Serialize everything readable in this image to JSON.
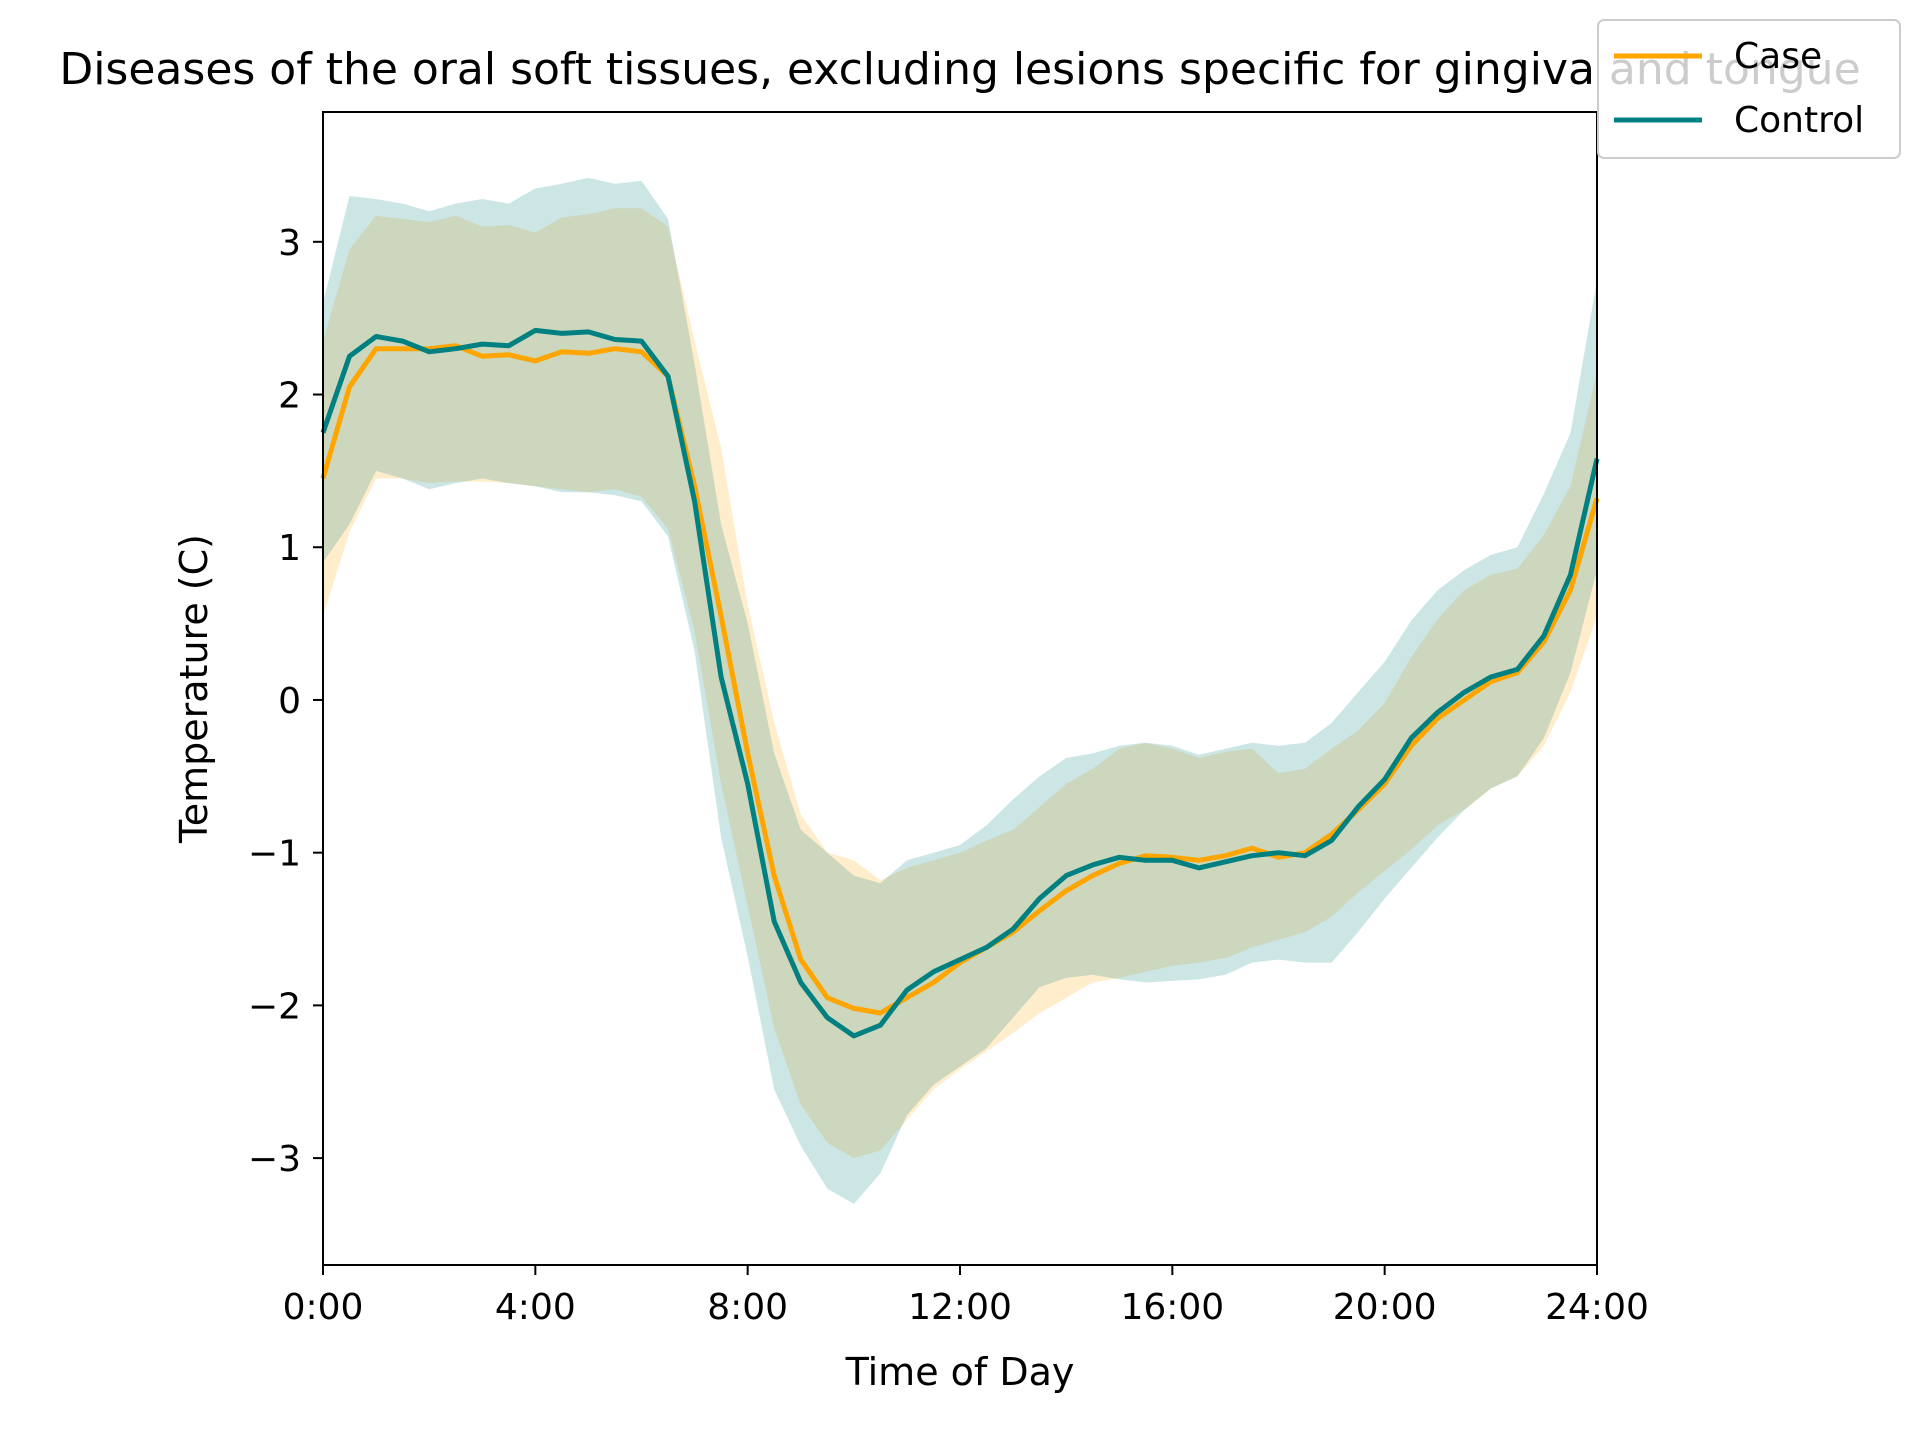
{
  "chart_data": {
    "type": "line",
    "title": "Diseases of the oral soft tissues, excluding lesions specific for gingiva and tongue",
    "xlabel": "Time of Day",
    "ylabel": "Temperature (C)",
    "xlim": [
      0,
      24
    ],
    "ylim": [
      -3.7,
      3.85
    ],
    "x_ticks": [
      0,
      4,
      8,
      12,
      16,
      20,
      24
    ],
    "x_tick_labels": [
      "0:00",
      "4:00",
      "8:00",
      "12:00",
      "16:00",
      "20:00",
      "24:00"
    ],
    "y_ticks": [
      -3,
      -2,
      -1,
      0,
      1,
      2,
      3
    ],
    "y_tick_labels": [
      "−3",
      "−2",
      "−1",
      "0",
      "1",
      "2",
      "3"
    ],
    "grid": false,
    "legend_position": "top-right",
    "series": [
      {
        "name": "Case",
        "color": "#FFA500",
        "x": [
          0,
          0.5,
          1,
          1.5,
          2,
          2.5,
          3,
          3.5,
          4,
          4.5,
          5,
          5.5,
          6,
          6.5,
          7,
          7.5,
          8,
          8.5,
          9,
          9.5,
          10,
          10.5,
          11,
          11.5,
          12,
          12.5,
          13,
          13.5,
          14,
          14.5,
          15,
          15.5,
          16,
          16.5,
          17,
          17.5,
          18,
          18.5,
          19,
          19.5,
          20,
          20.5,
          21,
          21.5,
          22,
          22.5,
          23,
          23.5,
          24
        ],
        "y": [
          1.45,
          2.05,
          2.3,
          2.3,
          2.3,
          2.32,
          2.25,
          2.26,
          2.22,
          2.28,
          2.27,
          2.3,
          2.28,
          2.12,
          1.4,
          0.55,
          -0.35,
          -1.15,
          -1.7,
          -1.95,
          -2.02,
          -2.05,
          -1.95,
          -1.85,
          -1.72,
          -1.62,
          -1.52,
          -1.38,
          -1.25,
          -1.15,
          -1.07,
          -1.02,
          -1.03,
          -1.05,
          -1.02,
          -0.97,
          -1.03,
          -1.0,
          -0.88,
          -0.72,
          -0.55,
          -0.3,
          -0.12,
          0.0,
          0.12,
          0.18,
          0.38,
          0.72,
          1.32
        ],
        "lower": [
          0.55,
          1.1,
          1.45,
          1.45,
          1.42,
          1.43,
          1.43,
          1.42,
          1.4,
          1.38,
          1.36,
          1.38,
          1.33,
          1.12,
          0.45,
          -0.55,
          -1.35,
          -2.15,
          -2.65,
          -2.9,
          -3.0,
          -2.95,
          -2.75,
          -2.55,
          -2.42,
          -2.3,
          -2.18,
          -2.05,
          -1.95,
          -1.85,
          -1.82,
          -1.78,
          -1.74,
          -1.72,
          -1.69,
          -1.62,
          -1.57,
          -1.52,
          -1.42,
          -1.26,
          -1.12,
          -0.98,
          -0.82,
          -0.72,
          -0.58,
          -0.5,
          -0.3,
          0.05,
          0.55
        ],
        "upper": [
          2.35,
          2.95,
          3.17,
          3.15,
          3.13,
          3.17,
          3.1,
          3.11,
          3.06,
          3.16,
          3.18,
          3.22,
          3.22,
          3.1,
          2.35,
          1.65,
          0.62,
          -0.15,
          -0.75,
          -1.0,
          -1.05,
          -1.18,
          -1.1,
          -1.05,
          -1.0,
          -0.92,
          -0.85,
          -0.7,
          -0.55,
          -0.45,
          -0.32,
          -0.28,
          -0.32,
          -0.38,
          -0.34,
          -0.32,
          -0.48,
          -0.45,
          -0.32,
          -0.2,
          -0.02,
          0.28,
          0.53,
          0.72,
          0.82,
          0.86,
          1.08,
          1.4,
          2.15
        ]
      },
      {
        "name": "Control",
        "color": "#008080",
        "x": [
          0,
          0.5,
          1,
          1.5,
          2,
          2.5,
          3,
          3.5,
          4,
          4.5,
          5,
          5.5,
          6,
          6.5,
          7,
          7.5,
          8,
          8.5,
          9,
          9.5,
          10,
          10.5,
          11,
          11.5,
          12,
          12.5,
          13,
          13.5,
          14,
          14.5,
          15,
          15.5,
          16,
          16.5,
          17,
          17.5,
          18,
          18.5,
          19,
          19.5,
          20,
          20.5,
          21,
          21.5,
          22,
          22.5,
          23,
          23.5,
          24
        ],
        "y": [
          1.75,
          2.25,
          2.38,
          2.35,
          2.28,
          2.3,
          2.33,
          2.32,
          2.42,
          2.4,
          2.41,
          2.36,
          2.35,
          2.12,
          1.3,
          0.15,
          -0.55,
          -1.45,
          -1.85,
          -2.08,
          -2.2,
          -2.13,
          -1.9,
          -1.78,
          -1.7,
          -1.62,
          -1.5,
          -1.3,
          -1.15,
          -1.08,
          -1.03,
          -1.05,
          -1.05,
          -1.1,
          -1.06,
          -1.02,
          -1.0,
          -1.02,
          -0.92,
          -0.7,
          -0.52,
          -0.25,
          -0.08,
          0.05,
          0.15,
          0.2,
          0.42,
          0.82,
          1.58
        ],
        "lower": [
          0.9,
          1.15,
          1.5,
          1.45,
          1.38,
          1.42,
          1.45,
          1.42,
          1.4,
          1.36,
          1.36,
          1.34,
          1.3,
          1.07,
          0.32,
          -0.9,
          -1.68,
          -2.55,
          -2.92,
          -3.2,
          -3.3,
          -3.1,
          -2.72,
          -2.52,
          -2.4,
          -2.28,
          -2.08,
          -1.88,
          -1.82,
          -1.8,
          -1.83,
          -1.85,
          -1.84,
          -1.83,
          -1.8,
          -1.72,
          -1.7,
          -1.72,
          -1.72,
          -1.52,
          -1.3,
          -1.1,
          -0.9,
          -0.72,
          -0.58,
          -0.5,
          -0.25,
          0.18,
          0.85
        ],
        "upper": [
          2.6,
          3.3,
          3.28,
          3.25,
          3.2,
          3.25,
          3.28,
          3.25,
          3.35,
          3.38,
          3.42,
          3.38,
          3.4,
          3.15,
          2.2,
          1.15,
          0.5,
          -0.35,
          -0.85,
          -1.0,
          -1.15,
          -1.2,
          -1.05,
          -1.0,
          -0.95,
          -0.82,
          -0.65,
          -0.5,
          -0.38,
          -0.35,
          -0.3,
          -0.28,
          -0.3,
          -0.36,
          -0.32,
          -0.28,
          -0.3,
          -0.28,
          -0.15,
          0.05,
          0.25,
          0.52,
          0.72,
          0.85,
          0.95,
          1.0,
          1.35,
          1.75,
          2.75
        ]
      }
    ]
  }
}
